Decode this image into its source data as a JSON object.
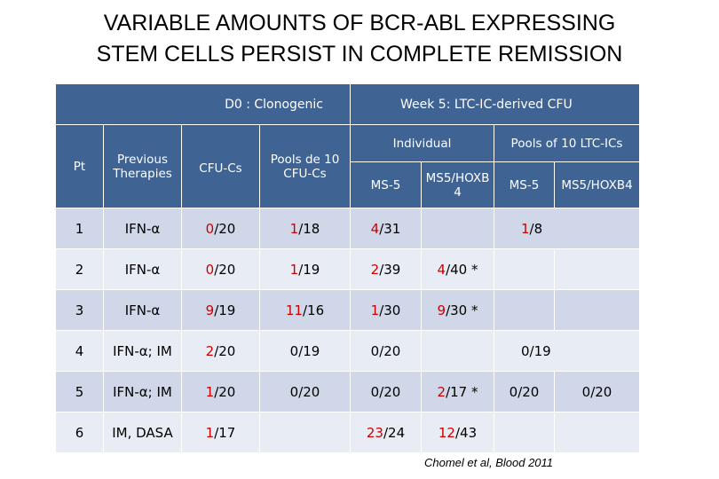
{
  "title": {
    "line1": "VARIABLE AMOUNTS OF BCR-ABL EXPRESSING",
    "line2": "STEM CELLS PERSIST IN COMPLETE REMISSION"
  },
  "header": {
    "d0": "D0 : Clonogenic",
    "week5": "Week 5: LTC-IC-derived CFU",
    "pt": "Pt",
    "previous": "Previous Therapies",
    "cfu_cs": "CFU-Cs",
    "pools_cfu": "Pools de 10 CFU-Cs",
    "individual": "Individual",
    "pools_ltc": "Pools of 10 LTC-ICs",
    "ms5_ind": "MS-5",
    "ms5hoxb_ind": "MS5/HOXB 4",
    "ms5_pool": "MS-5",
    "ms5hoxb_pool": "MS5/HOXB4"
  },
  "rows": [
    {
      "pt": "1",
      "therapy": "IFN-α",
      "cfu": {
        "n": "0",
        "d": "/20"
      },
      "pools": {
        "n": "1",
        "d": "/18"
      },
      "ms5": {
        "n": "4",
        "d": "/31"
      },
      "hoxb": {
        "n": "",
        "d": ""
      },
      "pool": {
        "n": "1",
        "d": "/8"
      }
    },
    {
      "pt": "2",
      "therapy": "IFN-α",
      "cfu": {
        "n": "0",
        "d": "/20"
      },
      "pools": {
        "n": "1",
        "d": "/19"
      },
      "ms5": {
        "n": "2",
        "d": "/39"
      },
      "hoxb": {
        "n": "4",
        "d": "/40 *"
      },
      "pool_ms5": "",
      "pool_hoxb": ""
    },
    {
      "pt": "3",
      "therapy": "IFN-α",
      "cfu": {
        "n": "9",
        "d": "/19"
      },
      "pools": {
        "n": "11",
        "d": "/16"
      },
      "ms5": {
        "n": "1",
        "d": "/30"
      },
      "hoxb": {
        "n": "9",
        "d": "/30 *"
      },
      "pool_ms5": "",
      "pool_hoxb": ""
    },
    {
      "pt": "4",
      "therapy": "IFN-α; IM",
      "cfu": {
        "n": "2",
        "d": "/20"
      },
      "pools": {
        "n": "",
        "d": "0/19"
      },
      "ms5": {
        "n": "",
        "d": "0/20"
      },
      "hoxb": {
        "n": "",
        "d": ""
      },
      "pool": {
        "n": "",
        "d": "0/19"
      }
    },
    {
      "pt": "5",
      "therapy": "IFN-α; IM",
      "cfu": {
        "n": "1",
        "d": "/20"
      },
      "pools": {
        "n": "",
        "d": "0/20"
      },
      "ms5": {
        "n": "",
        "d": "0/20"
      },
      "hoxb": {
        "n": "2",
        "d": "/17 *"
      },
      "pool_ms5": "0/20",
      "pool_hoxb": "0/20"
    },
    {
      "pt": "6",
      "therapy": "IM, DASA",
      "cfu": {
        "n": "1",
        "d": "/17"
      },
      "pools": {
        "n": "",
        "d": ""
      },
      "ms5": {
        "n": "23",
        "d": "/24"
      },
      "hoxb": {
        "n": "12",
        "d": "/43"
      },
      "pool_ms5": "",
      "pool_hoxb": ""
    }
  ],
  "citation": "Chomel et al, Blood 2011",
  "colors": {
    "header": "#3f6393",
    "row_light": "#cfd7e8",
    "row_dark": "#e8ecf4",
    "highlight": "#cc0000"
  }
}
